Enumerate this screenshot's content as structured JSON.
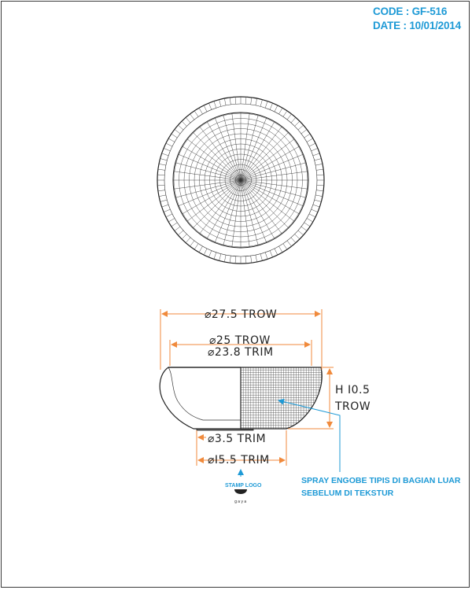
{
  "header": {
    "code": "CODE : GF-516",
    "date": "DATE : 10/01/2014"
  },
  "dimensions": {
    "outer_diameter": "⌀27.5 TROW",
    "mid_diameter": "⌀25 TROW",
    "rim_diameter": "⌀23.8 TRIM",
    "height_value": "H I0.5",
    "height_unit": "TROW",
    "foot_inner": "⌀3.5 TRIM",
    "foot_outer": "⌀I5.5 TRIM"
  },
  "notes": {
    "spray_line1": "SPRAY ENGOBE TIPIS DI BAGIAN LUAR",
    "spray_line2": "SEBELUM DI TEKSTUR",
    "stamp_label": "STAMP LOGO",
    "brand": "gaya"
  },
  "colors": {
    "dimension_line": "#f08a3c",
    "annotation": "#1e9ad6",
    "outline": "#222222"
  }
}
